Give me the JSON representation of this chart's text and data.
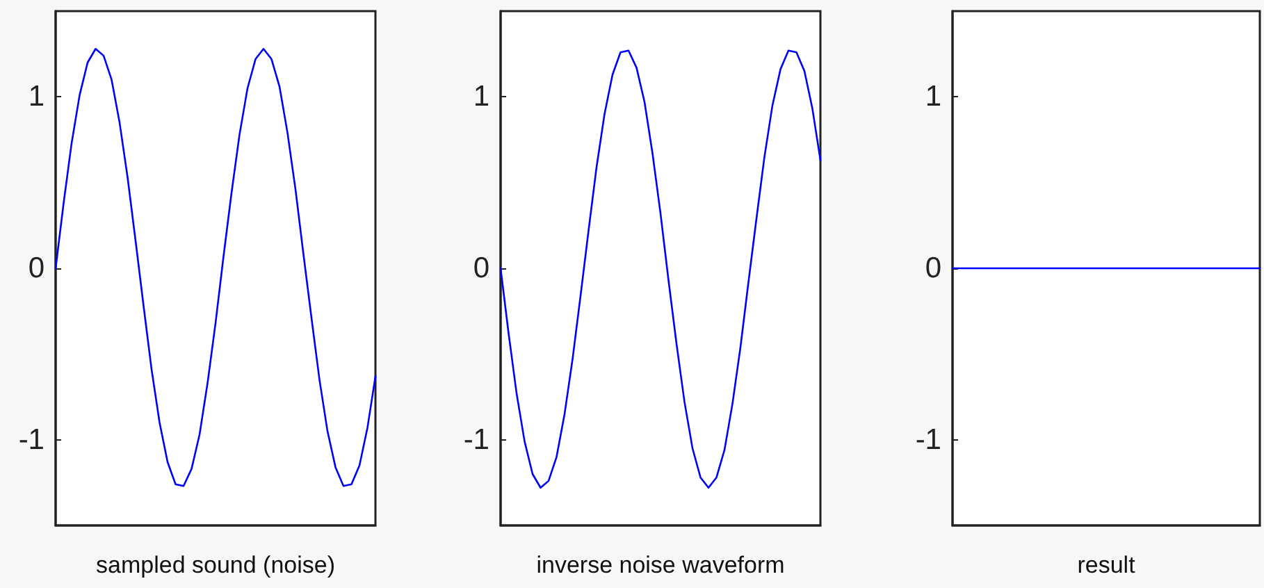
{
  "chart_data": [
    {
      "type": "line",
      "xlabel": "sampled sound (noise)",
      "categories": [
        null,
        null,
        null,
        null,
        null,
        null,
        null,
        null,
        null,
        null,
        null,
        null,
        null,
        null,
        null,
        null,
        null,
        null,
        null,
        null,
        null,
        null,
        null,
        null,
        null,
        null,
        null,
        null,
        null,
        null,
        null,
        null,
        null,
        null,
        null,
        null,
        null,
        null,
        null,
        null,
        null
      ],
      "series": [
        {
          "color": "#0000ff",
          "values": [
            0,
            0.38,
            0.73,
            1.01,
            1.2,
            1.28,
            1.24,
            1.1,
            0.85,
            0.53,
            0.16,
            -0.22,
            -0.59,
            -0.9,
            -1.13,
            -1.26,
            -1.27,
            -1.17,
            -0.97,
            -0.67,
            -0.32,
            0.07,
            0.44,
            0.78,
            1.05,
            1.22,
            1.28,
            1.22,
            1.06,
            0.79,
            0.46,
            0.08,
            -0.29,
            -0.65,
            -0.95,
            -1.16,
            -1.27,
            -1.26,
            -1.15,
            -0.93,
            -0.63
          ]
        }
      ],
      "ylim": [
        -1.5,
        1.5
      ],
      "yticks": [
        -1,
        0,
        1
      ],
      "grid": false,
      "line_style": "solid",
      "tick_labels": "y"
    },
    {
      "type": "line",
      "xlabel": "inverse noise waveform",
      "categories": [
        null,
        null,
        null,
        null,
        null,
        null,
        null,
        null,
        null,
        null,
        null,
        null,
        null,
        null,
        null,
        null,
        null,
        null,
        null,
        null,
        null,
        null,
        null,
        null,
        null,
        null,
        null,
        null,
        null,
        null,
        null,
        null,
        null,
        null,
        null,
        null,
        null,
        null,
        null,
        null,
        null
      ],
      "series": [
        {
          "color": "#0000ff",
          "values": [
            0,
            -0.38,
            -0.73,
            -1.01,
            -1.2,
            -1.28,
            -1.24,
            -1.1,
            -0.85,
            -0.53,
            -0.16,
            0.22,
            0.59,
            0.9,
            1.13,
            1.26,
            1.27,
            1.17,
            0.97,
            0.67,
            0.32,
            -0.07,
            -0.44,
            -0.78,
            -1.05,
            -1.22,
            -1.28,
            -1.22,
            -1.06,
            -0.79,
            -0.46,
            -0.08,
            0.29,
            0.65,
            0.95,
            1.16,
            1.27,
            1.26,
            1.15,
            0.93,
            0.63
          ]
        }
      ],
      "ylim": [
        -1.5,
        1.5
      ],
      "yticks": [
        -1,
        0,
        1
      ],
      "grid": false,
      "line_style": "solid",
      "tick_labels": "y"
    },
    {
      "type": "line",
      "xlabel": "result",
      "categories": [
        null,
        null,
        null,
        null,
        null,
        null,
        null,
        null,
        null,
        null,
        null,
        null,
        null,
        null,
        null,
        null,
        null,
        null,
        null,
        null,
        null,
        null,
        null,
        null,
        null,
        null,
        null,
        null,
        null,
        null,
        null,
        null,
        null,
        null,
        null,
        null,
        null,
        null,
        null,
        null,
        null
      ],
      "series": [
        {
          "color": "#0000ff",
          "values": [
            0,
            0,
            0,
            0,
            0,
            0,
            0,
            0,
            0,
            0,
            0,
            0,
            0,
            0,
            0,
            0,
            0,
            0,
            0,
            0,
            0,
            0,
            0,
            0,
            0,
            0,
            0,
            0,
            0,
            0,
            0,
            0,
            0,
            0,
            0,
            0,
            0,
            0,
            0,
            0,
            0
          ]
        }
      ],
      "ylim": [
        -1.5,
        1.5
      ],
      "yticks": [
        -1,
        0,
        1
      ],
      "grid": false,
      "line_style": "solid",
      "tick_labels": "y"
    }
  ]
}
